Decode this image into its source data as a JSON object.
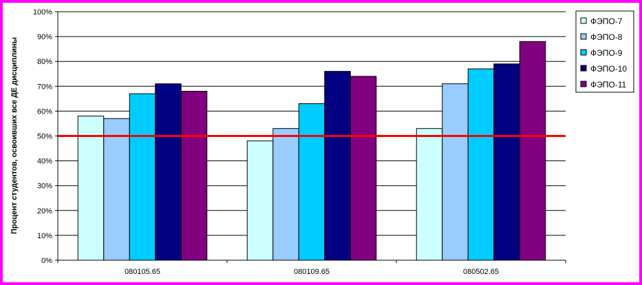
{
  "chart_data": {
    "type": "bar",
    "categories": [
      "080105.65",
      "080109.65",
      "080502.65"
    ],
    "series": [
      {
        "name": "ФЭПО-7",
        "color": "#ccffff",
        "values": [
          58,
          48,
          53
        ]
      },
      {
        "name": "ФЭПО-8",
        "color": "#99ccff",
        "values": [
          57,
          53,
          71
        ]
      },
      {
        "name": "ФЭПО-9",
        "color": "#00ccff",
        "values": [
          67,
          63,
          77
        ]
      },
      {
        "name": "ФЭПО-10",
        "color": "#000080",
        "values": [
          71,
          76,
          79
        ]
      },
      {
        "name": "ФЭПО-11",
        "color": "#800080",
        "values": [
          68,
          74,
          88
        ]
      }
    ],
    "ylabel": "Процент студентов, освоивших все ДЕ дисциплины",
    "yticks": [
      "0%",
      "10%",
      "20%",
      "30%",
      "40%",
      "50%",
      "60%",
      "70%",
      "80%",
      "90%",
      "100%"
    ],
    "ylim": [
      0,
      100
    ],
    "reference_line": {
      "value": 50,
      "color": "#ff0000"
    },
    "grid": true,
    "legend_position": "right",
    "frame_color": "#ff00ff"
  }
}
